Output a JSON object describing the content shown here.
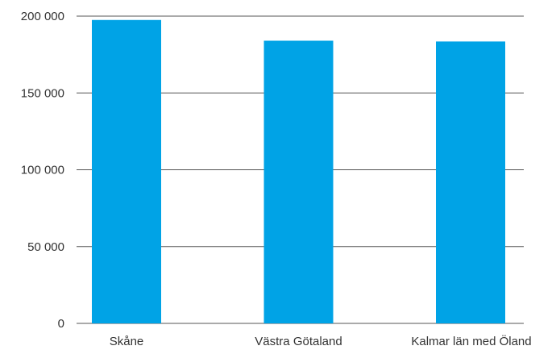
{
  "chart_data": {
    "type": "bar",
    "categories": [
      "Skåne",
      "Västra Götaland",
      "Kalmar län med Öland"
    ],
    "values": [
      197500,
      184000,
      183500
    ],
    "ylim": [
      0,
      200000
    ],
    "yticks": [
      {
        "value": 0,
        "label": "0"
      },
      {
        "value": 50000,
        "label": "50 000"
      },
      {
        "value": 100000,
        "label": "100 000"
      },
      {
        "value": 150000,
        "label": "150 000"
      },
      {
        "value": 200000,
        "label": "200 000"
      }
    ],
    "title": "",
    "xlabel": "",
    "ylabel": "",
    "grid": true,
    "colors": {
      "bar": "#00a3e6",
      "grid": "#555555"
    }
  }
}
